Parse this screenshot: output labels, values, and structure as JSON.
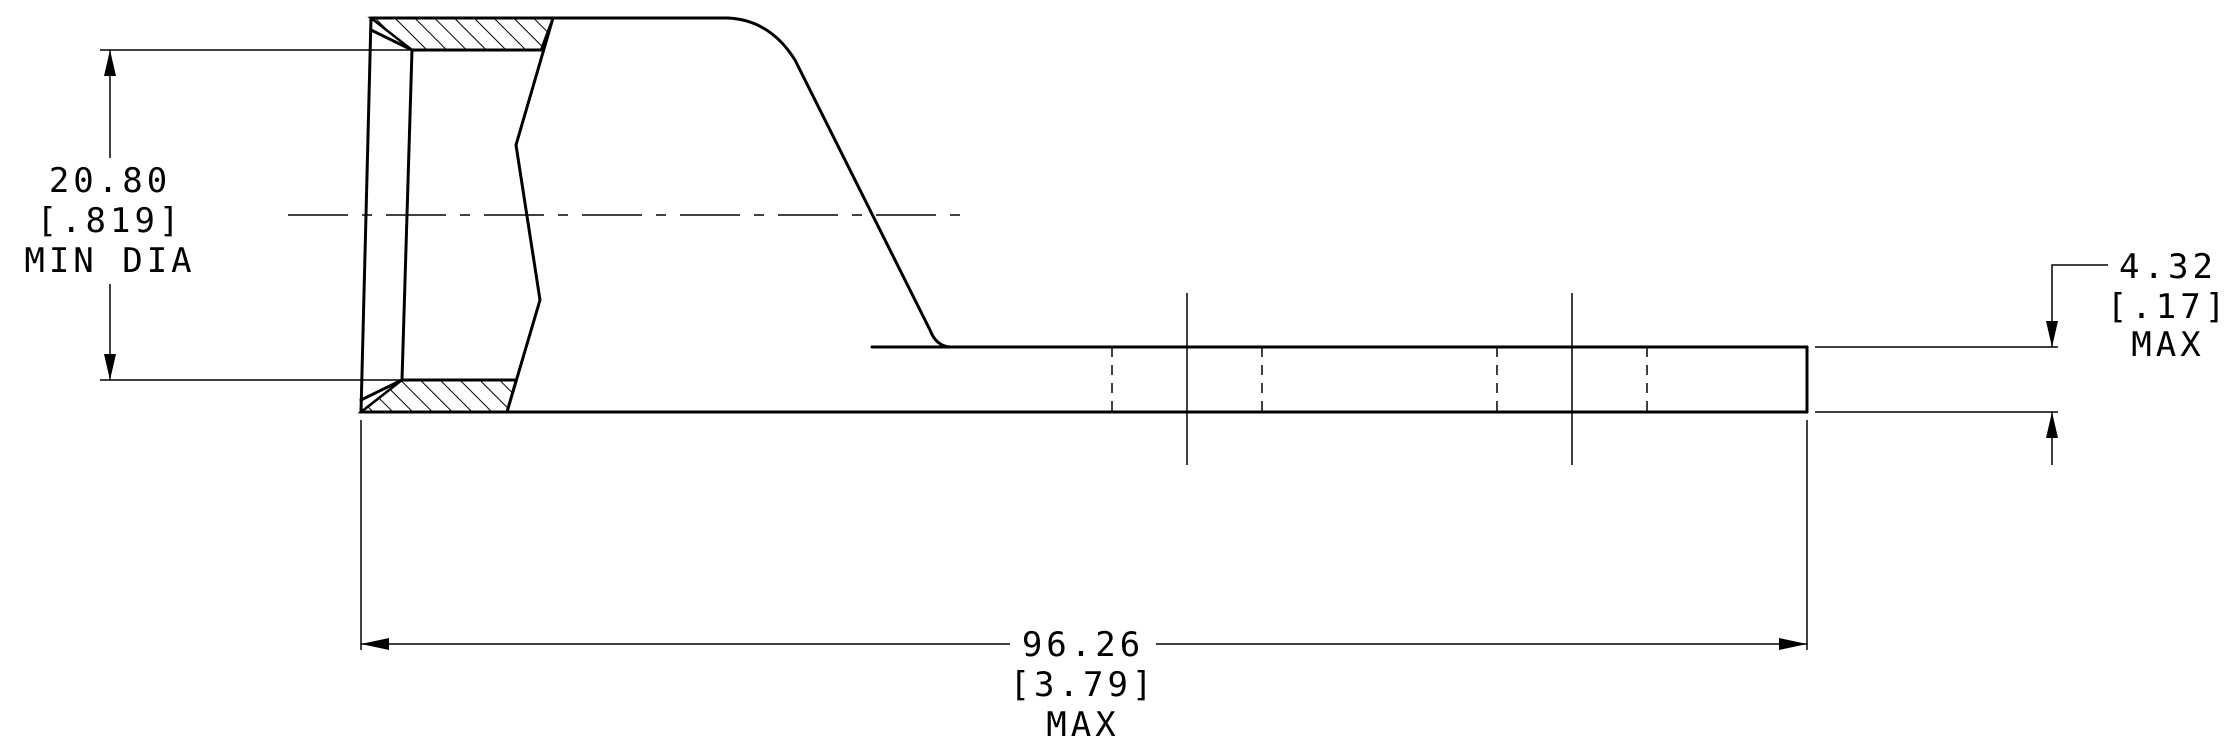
{
  "dimensions": {
    "diameter": {
      "value": "20.80",
      "inch": "[.819]",
      "note": "MIN DIA"
    },
    "thickness": {
      "value": "4.32",
      "inch": "[.17]",
      "note": "MAX"
    },
    "length": {
      "value": "96.26",
      "inch": "[3.79]",
      "note": "MAX"
    }
  }
}
